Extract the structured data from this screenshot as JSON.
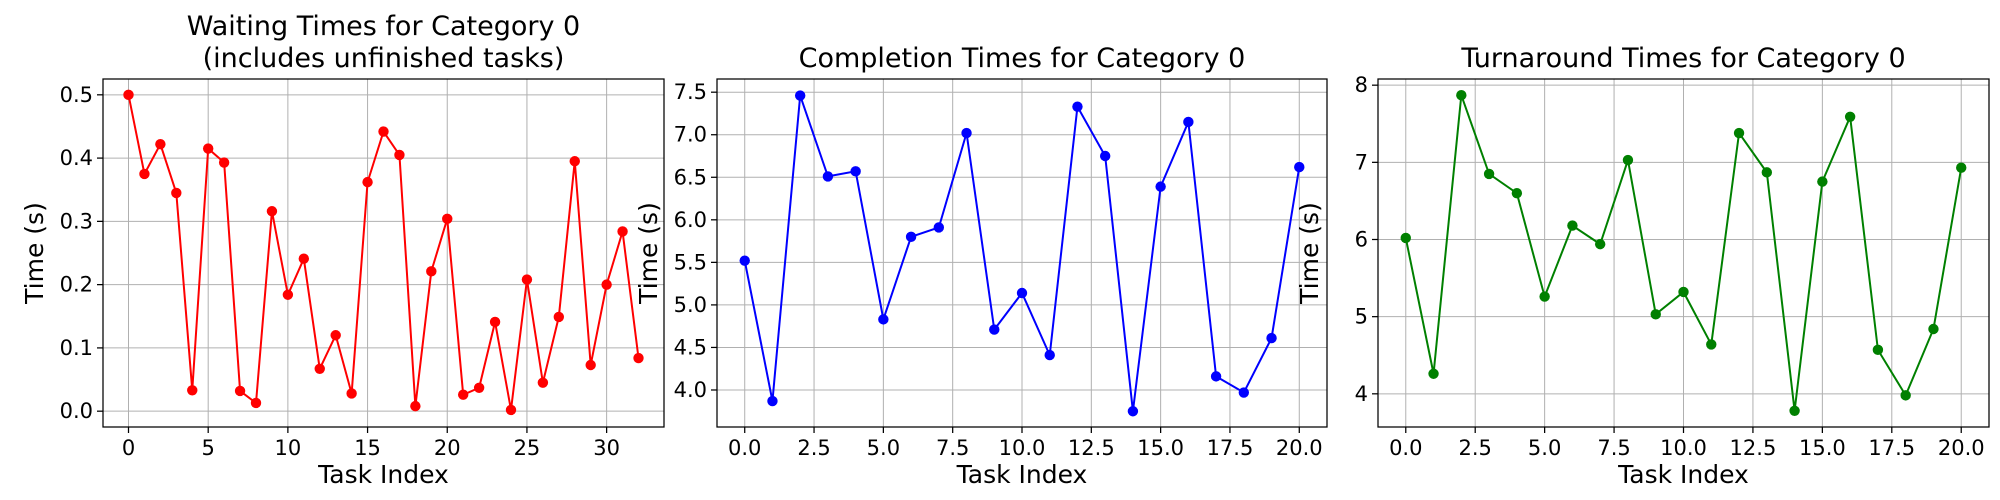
{
  "chart_data": [
    {
      "type": "line",
      "title": "Waiting Times for Category 0\n(includes unfinished tasks)",
      "xlabel": "Task Index",
      "ylabel": "Time (s)",
      "xlim": [
        -1.6,
        33.6
      ],
      "ylim": [
        -0.025,
        0.525
      ],
      "xticks": [
        0,
        5,
        10,
        15,
        20,
        25,
        30
      ],
      "xtick_labels": [
        "0",
        "5",
        "10",
        "15",
        "20",
        "25",
        "30"
      ],
      "yticks": [
        0.0,
        0.1,
        0.2,
        0.3,
        0.4,
        0.5
      ],
      "ytick_labels": [
        "0.0",
        "0.1",
        "0.2",
        "0.3",
        "0.4",
        "0.5"
      ],
      "grid": true,
      "color": "#ff0000",
      "series": [
        {
          "x": [
            0,
            1,
            2,
            3,
            4,
            5,
            6,
            7,
            8,
            9,
            10,
            11,
            12,
            13,
            14,
            15,
            16,
            17,
            18,
            19,
            20,
            21,
            22,
            23,
            24,
            25,
            26,
            27,
            28,
            29,
            30,
            31,
            32
          ],
          "values": [
            0.5,
            0.375,
            0.422,
            0.345,
            0.033,
            0.415,
            0.393,
            0.032,
            0.013,
            0.316,
            0.184,
            0.241,
            0.067,
            0.12,
            0.028,
            0.362,
            0.442,
            0.405,
            0.008,
            0.221,
            0.304,
            0.026,
            0.037,
            0.141,
            0.002,
            0.208,
            0.045,
            0.149,
            0.395,
            0.073,
            0.2,
            0.284,
            0.084
          ]
        }
      ]
    },
    {
      "type": "line",
      "title": "Completion Times for Category 0",
      "xlabel": "Task Index",
      "ylabel": "Time (s)",
      "xlim": [
        -1.0,
        21.0
      ],
      "ylim": [
        3.565,
        7.655
      ],
      "xticks": [
        0.0,
        2.5,
        5.0,
        7.5,
        10.0,
        12.5,
        15.0,
        17.5,
        20.0
      ],
      "xtick_labels": [
        "0.0",
        "2.5",
        "5.0",
        "7.5",
        "10.0",
        "12.5",
        "15.0",
        "17.5",
        "20.0"
      ],
      "yticks": [
        4.0,
        4.5,
        5.0,
        5.5,
        6.0,
        6.5,
        7.0,
        7.5
      ],
      "ytick_labels": [
        "4.0",
        "4.5",
        "5.0",
        "5.5",
        "6.0",
        "6.5",
        "7.0",
        "7.5"
      ],
      "grid": true,
      "color": "#0000ff",
      "series": [
        {
          "x": [
            0,
            1,
            2,
            3,
            4,
            5,
            6,
            7,
            8,
            9,
            10,
            11,
            12,
            13,
            14,
            15,
            16,
            17,
            18,
            19,
            20
          ],
          "values": [
            5.52,
            3.87,
            7.46,
            6.51,
            6.57,
            4.83,
            5.8,
            5.91,
            7.02,
            4.71,
            5.14,
            4.41,
            7.33,
            6.75,
            3.75,
            6.39,
            7.15,
            4.16,
            3.97,
            4.61,
            6.62
          ]
        }
      ]
    },
    {
      "type": "line",
      "title": "Turnaround Times for Category 0",
      "xlabel": "Task Index",
      "ylabel": "Time (s)",
      "xlim": [
        -1.0,
        21.0
      ],
      "ylim": [
        3.57,
        8.08
      ],
      "xticks": [
        0.0,
        2.5,
        5.0,
        7.5,
        10.0,
        12.5,
        15.0,
        17.5,
        20.0
      ],
      "xtick_labels": [
        "0.0",
        "2.5",
        "5.0",
        "7.5",
        "10.0",
        "12.5",
        "15.0",
        "17.5",
        "20.0"
      ],
      "yticks": [
        4,
        5,
        6,
        7,
        8
      ],
      "ytick_labels": [
        "4",
        "5",
        "6",
        "7",
        "8"
      ],
      "grid": true,
      "color": "#008000",
      "series": [
        {
          "x": [
            0,
            1,
            2,
            3,
            4,
            5,
            6,
            7,
            8,
            9,
            10,
            11,
            12,
            13,
            14,
            15,
            16,
            17,
            18,
            19,
            20
          ],
          "values": [
            6.02,
            4.26,
            7.87,
            6.85,
            6.6,
            5.26,
            6.18,
            5.94,
            7.03,
            5.03,
            5.32,
            4.64,
            7.38,
            6.87,
            3.78,
            6.75,
            7.59,
            4.57,
            3.98,
            4.84,
            6.93
          ]
        }
      ]
    }
  ]
}
